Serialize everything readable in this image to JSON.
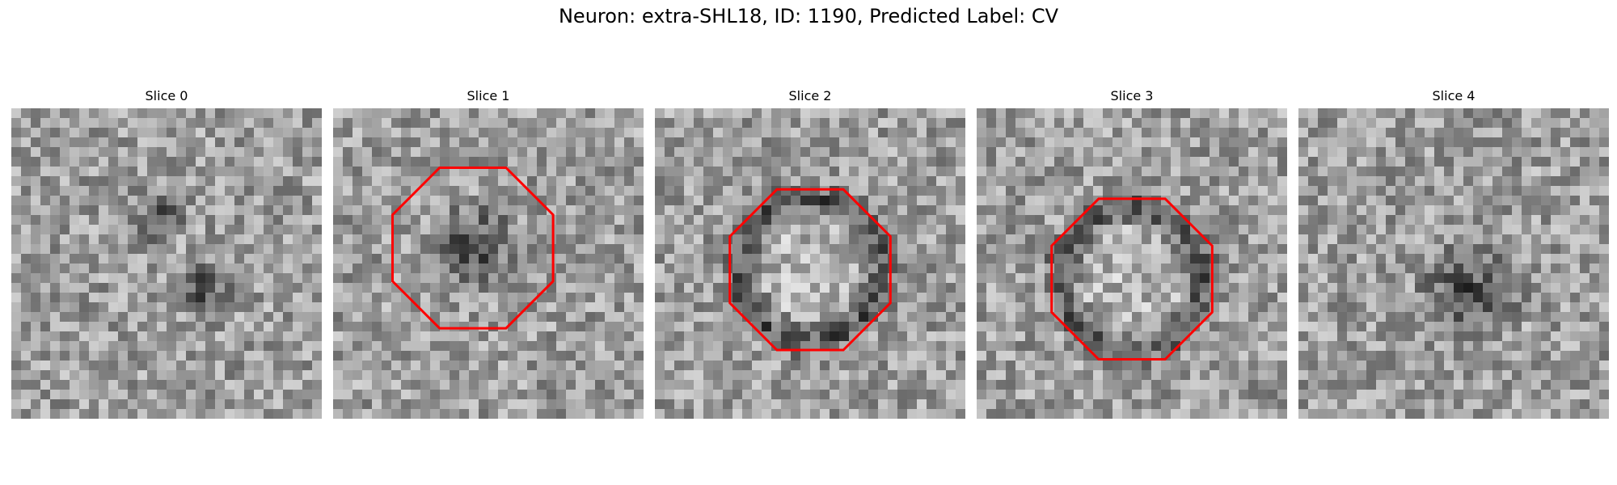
{
  "figure": {
    "title": "Neuron: extra-SHL18, ID: 1190, Predicted Label: CV"
  },
  "panels": [
    {
      "title": "Slice 0",
      "seed": 11,
      "dark_spots": [
        [
          0.62,
          0.58,
          0.12
        ],
        [
          0.48,
          0.35,
          0.1
        ]
      ],
      "outline": false,
      "outline_color": "#ff0000"
    },
    {
      "title": "Slice 1",
      "seed": 23,
      "dark_spots": [
        [
          0.45,
          0.45,
          0.18
        ]
      ],
      "outline": true,
      "outline_color": "#ff0000"
    },
    {
      "title": "Slice 2",
      "seed": 37,
      "ring": [
        0.5,
        0.52,
        0.27
      ],
      "outline": true,
      "outline_color": "#ff0000"
    },
    {
      "title": "Slice 3",
      "seed": 51,
      "ring": [
        0.5,
        0.55,
        0.27
      ],
      "outline": true,
      "outline_color": "#ff0000"
    },
    {
      "title": "Slice 4",
      "seed": 67,
      "dark_spots": [
        [
          0.55,
          0.6,
          0.2
        ]
      ],
      "outline": false,
      "outline_color": "#ff0000"
    }
  ]
}
